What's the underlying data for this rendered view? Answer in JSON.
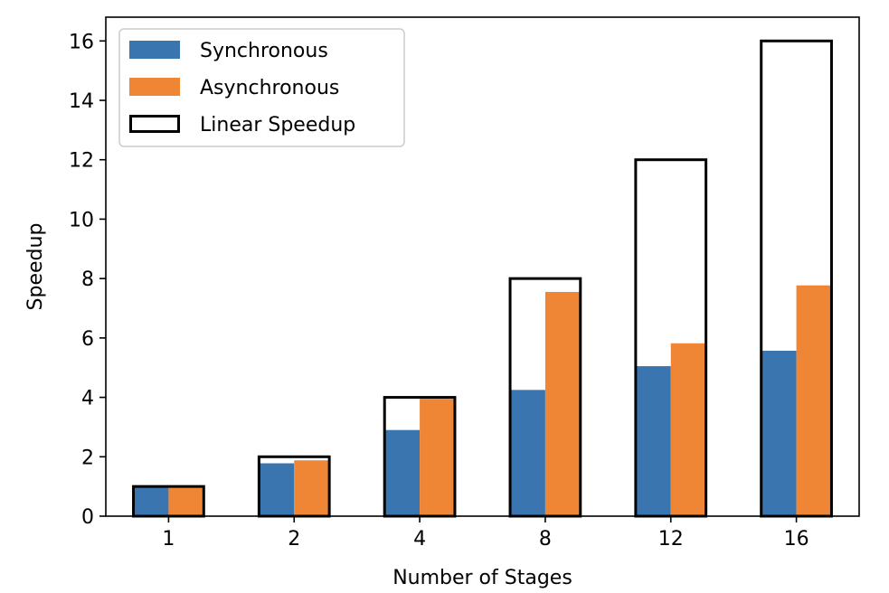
{
  "chart_data": {
    "type": "bar",
    "xlabel": "Number of Stages",
    "ylabel": "Speedup",
    "categories": [
      "1",
      "2",
      "4",
      "8",
      "12",
      "16"
    ],
    "ylim": [
      0,
      16.8
    ],
    "yticks": [
      0,
      2,
      4,
      6,
      8,
      10,
      12,
      14,
      16
    ],
    "grid": false,
    "legend_position": "top-left",
    "series": [
      {
        "name": "Synchronous",
        "values": [
          1.0,
          1.78,
          2.9,
          4.25,
          5.05,
          5.57
        ],
        "color": "#3b75af",
        "style": "filled"
      },
      {
        "name": "Asynchronous",
        "values": [
          1.0,
          1.88,
          3.95,
          7.55,
          5.82,
          7.77
        ],
        "color": "#ef8636",
        "style": "filled"
      },
      {
        "name": "Linear Speedup",
        "values": [
          1,
          2,
          4,
          8,
          12,
          16
        ],
        "color": "#000000",
        "style": "outline"
      }
    ]
  }
}
